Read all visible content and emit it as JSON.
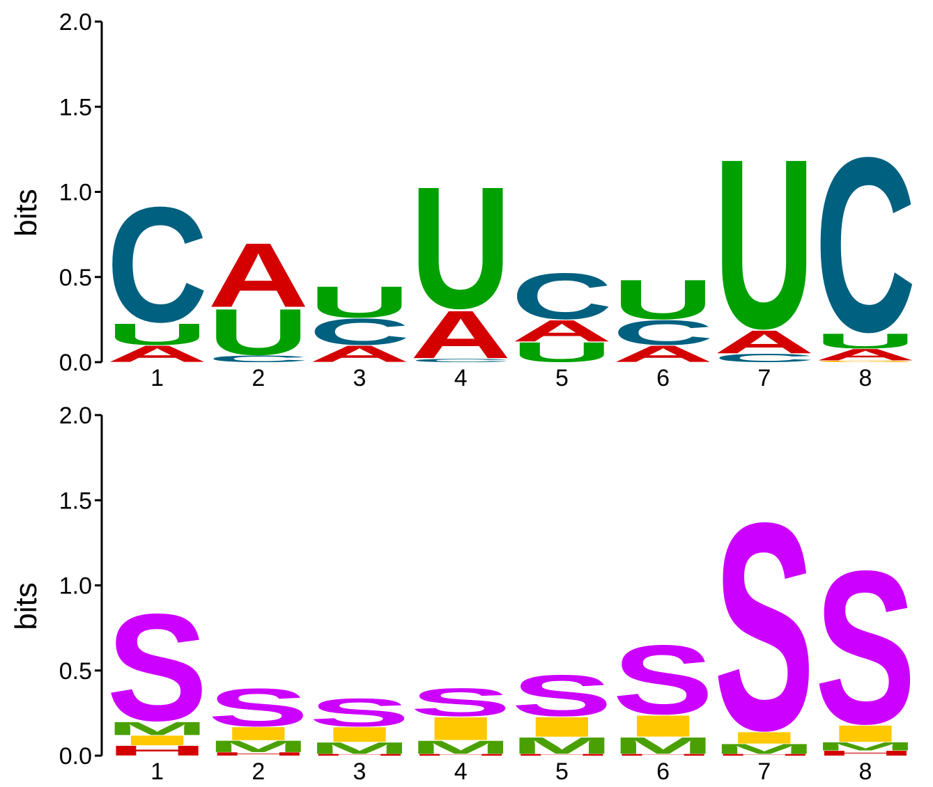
{
  "chart_data": [
    {
      "type": "sequence-logo",
      "ylabel": "bits",
      "ylim": [
        0,
        2.0
      ],
      "yticks": [
        "0.0",
        "0.5",
        "1.0",
        "1.5",
        "2.0"
      ],
      "positions": [
        "1",
        "2",
        "3",
        "4",
        "5",
        "6",
        "7",
        "8"
      ],
      "colors": {
        "A": "#d40000",
        "C": "#006080",
        "U": "#00a000",
        "G": "#ffb000"
      },
      "stacks": [
        [
          {
            "letter": "A",
            "height": 0.1
          },
          {
            "letter": "U",
            "height": 0.13
          },
          {
            "letter": "C",
            "height": 0.7
          }
        ],
        [
          {
            "letter": "C",
            "height": 0.04
          },
          {
            "letter": "U",
            "height": 0.28
          },
          {
            "letter": "A",
            "height": 0.39
          }
        ],
        [
          {
            "letter": "A",
            "height": 0.1
          },
          {
            "letter": "C",
            "height": 0.16
          },
          {
            "letter": "U",
            "height": 0.19
          }
        ],
        [
          {
            "letter": "C",
            "height": 0.02
          },
          {
            "letter": "A",
            "height": 0.29
          },
          {
            "letter": "U",
            "height": 0.74
          }
        ],
        [
          {
            "letter": "U",
            "height": 0.12
          },
          {
            "letter": "A",
            "height": 0.13
          },
          {
            "letter": "C",
            "height": 0.28
          }
        ],
        [
          {
            "letter": "A",
            "height": 0.1
          },
          {
            "letter": "C",
            "height": 0.15
          },
          {
            "letter": "U",
            "height": 0.24
          }
        ],
        [
          {
            "letter": "C",
            "height": 0.05
          },
          {
            "letter": "A",
            "height": 0.14
          },
          {
            "letter": "U",
            "height": 1.03
          }
        ],
        [
          {
            "letter": "G",
            "height": 0.01
          },
          {
            "letter": "A",
            "height": 0.07
          },
          {
            "letter": "U",
            "height": 0.09
          },
          {
            "letter": "C",
            "height": 1.06
          }
        ]
      ]
    },
    {
      "type": "sequence-logo",
      "ylabel": "bits",
      "ylim": [
        0,
        2.0
      ],
      "yticks": [
        "0.0",
        "0.5",
        "1.0",
        "1.5",
        "2.0"
      ],
      "positions": [
        "1",
        "2",
        "3",
        "4",
        "5",
        "6",
        "7",
        "8"
      ],
      "colors": {
        "H": "#d40000",
        "M": "#4aa000",
        "I": "#ffc800",
        "S": "#cc00ff"
      },
      "stacks": [
        [
          {
            "letter": "H",
            "height": 0.06
          },
          {
            "letter": "I",
            "height": 0.06
          },
          {
            "letter": "M",
            "height": 0.08
          },
          {
            "letter": "S",
            "height": 0.65
          }
        ],
        [
          {
            "letter": "H",
            "height": 0.02
          },
          {
            "letter": "M",
            "height": 0.07
          },
          {
            "letter": "I",
            "height": 0.08
          },
          {
            "letter": "S",
            "height": 0.23
          }
        ],
        [
          {
            "letter": "H",
            "height": 0.01
          },
          {
            "letter": "M",
            "height": 0.07
          },
          {
            "letter": "I",
            "height": 0.09
          },
          {
            "letter": "S",
            "height": 0.17
          }
        ],
        [
          {
            "letter": "H",
            "height": 0.01
          },
          {
            "letter": "M",
            "height": 0.08
          },
          {
            "letter": "I",
            "height": 0.14
          },
          {
            "letter": "S",
            "height": 0.17
          }
        ],
        [
          {
            "letter": "H",
            "height": 0.01
          },
          {
            "letter": "M",
            "height": 0.1
          },
          {
            "letter": "I",
            "height": 0.12
          },
          {
            "letter": "S",
            "height": 0.25
          }
        ],
        [
          {
            "letter": "H",
            "height": 0.01
          },
          {
            "letter": "M",
            "height": 0.1
          },
          {
            "letter": "I",
            "height": 0.13
          },
          {
            "letter": "S",
            "height": 0.42
          }
        ],
        [
          {
            "letter": "H",
            "height": 0.01
          },
          {
            "letter": "M",
            "height": 0.06
          },
          {
            "letter": "I",
            "height": 0.07
          },
          {
            "letter": "S",
            "height": 1.26
          }
        ],
        [
          {
            "letter": "H",
            "height": 0.03
          },
          {
            "letter": "M",
            "height": 0.05
          },
          {
            "letter": "I",
            "height": 0.1
          },
          {
            "letter": "S",
            "height": 0.93
          }
        ]
      ]
    }
  ]
}
